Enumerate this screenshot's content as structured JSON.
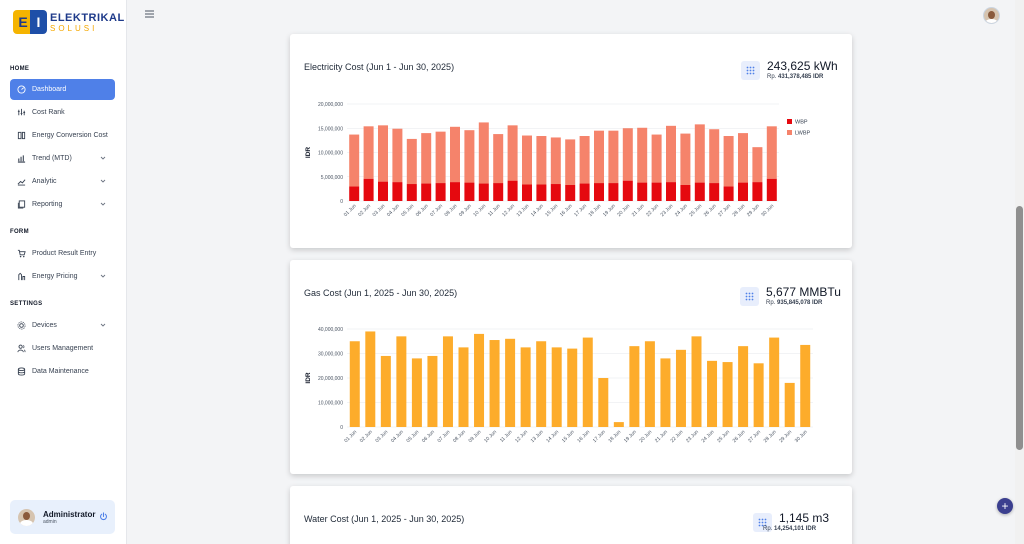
{
  "brand": {
    "name": "ELEKTRIKAL",
    "tagline": "SOLUSI",
    "mark_left": "E",
    "mark_right": "I"
  },
  "topbar": {
    "menu_icon": "hamburger-icon"
  },
  "sidebar": {
    "sections": [
      {
        "title": "HOME",
        "items": [
          {
            "label": "Dashboard",
            "icon": "dashboard-icon",
            "active": true,
            "chevron": false
          },
          {
            "label": "Cost Rank",
            "icon": "rank-icon",
            "active": false,
            "chevron": false
          },
          {
            "label": "Energy Conversion Cost",
            "icon": "conversion-icon",
            "active": false,
            "chevron": false
          },
          {
            "label": "Trend (MTD)",
            "icon": "trend-icon",
            "active": false,
            "chevron": true
          },
          {
            "label": "Analytic",
            "icon": "analytic-icon",
            "active": false,
            "chevron": true
          },
          {
            "label": "Reporting",
            "icon": "reporting-icon",
            "active": false,
            "chevron": true
          }
        ]
      },
      {
        "title": "FORM",
        "items": [
          {
            "label": "Product Result Entry",
            "icon": "cart-icon",
            "active": false,
            "chevron": false
          },
          {
            "label": "Energy Pricing",
            "icon": "pricing-icon",
            "active": false,
            "chevron": true
          }
        ]
      },
      {
        "title": "SETTINGS",
        "items": [
          {
            "label": "Devices",
            "icon": "devices-icon",
            "active": false,
            "chevron": true
          },
          {
            "label": "Users Management",
            "icon": "users-icon",
            "active": false,
            "chevron": false
          },
          {
            "label": "Data Maintenance",
            "icon": "database-icon",
            "active": false,
            "chevron": false
          }
        ]
      }
    ]
  },
  "user": {
    "name": "Administrator",
    "role": "admin"
  },
  "colors": {
    "wbp": "#e5090f",
    "lwbp": "#f5836b",
    "gas": "#fdac2b",
    "active_nav": "#4f80e8"
  },
  "cards": {
    "electricity": {
      "title": "Electricity Cost (Jun 1 - Jun 30, 2025)",
      "stat_value": "243,625 kWh",
      "stat_prefix": "Rp.",
      "stat_cost": "431,378,485 IDR"
    },
    "gas": {
      "title": "Gas Cost (Jun 1, 2025 - Jun 30, 2025)",
      "stat_value": "5,677 MMBTu",
      "stat_prefix": "Rp.",
      "stat_cost": "935,845,078 IDR"
    },
    "water": {
      "title": "Water Cost (Jun 1, 2025 - Jun 30, 2025)",
      "stat_value": "1,145 m3",
      "stat_prefix": "Rp.",
      "stat_cost": "14,254,101 IDR"
    }
  },
  "chart_data": [
    {
      "type": "bar",
      "stacked": true,
      "ylabel": "IDR",
      "ylim": [
        0,
        20000000
      ],
      "yticks": [
        "0",
        "5,000,000",
        "10,000,000",
        "15,000,000",
        "20,000,000"
      ],
      "ytick_values": [
        0,
        5000000,
        10000000,
        15000000,
        20000000
      ],
      "legend_position": "right",
      "categories": [
        "01 Jun",
        "02 Jun",
        "03 Jun",
        "04 Jun",
        "05 Jun",
        "06 Jun",
        "07 Jun",
        "08 Jun",
        "09 Jun",
        "10 Jun",
        "11 Jun",
        "12 Jun",
        "13 Jun",
        "14 Jun",
        "15 Jun",
        "16 Jun",
        "17 Jun",
        "18 Jun",
        "19 Jun",
        "20 Jun",
        "21 Jun",
        "22 Jun",
        "23 Jun",
        "24 Jun",
        "25 Jun",
        "26 Jun",
        "27 Jun",
        "28 Jun",
        "29 Jun",
        "30 Jun"
      ],
      "series": [
        {
          "name": "WBP",
          "color": "#e5090f",
          "values": [
            3000000,
            4600000,
            4000000,
            3900000,
            3500000,
            3600000,
            3700000,
            3900000,
            3800000,
            3600000,
            3700000,
            4200000,
            3400000,
            3400000,
            3500000,
            3300000,
            3600000,
            3700000,
            3700000,
            4200000,
            3800000,
            3800000,
            3900000,
            3300000,
            3800000,
            3700000,
            3000000,
            3800000,
            3900000,
            4600000
          ]
        },
        {
          "name": "LWBP",
          "color": "#f5836b",
          "values": [
            10700000,
            10800000,
            11600000,
            11000000,
            9300000,
            10400000,
            10600000,
            11400000,
            10800000,
            12600000,
            10100000,
            11400000,
            10100000,
            10000000,
            9600000,
            9400000,
            9800000,
            10800000,
            10800000,
            10800000,
            11300000,
            9900000,
            11600000,
            10600000,
            12000000,
            11100000,
            10400000,
            10200000,
            7200000,
            10800000
          ]
        }
      ]
    },
    {
      "type": "bar",
      "ylabel": "IDR",
      "ylim": [
        0,
        40000000
      ],
      "yticks": [
        "0",
        "10,000,000",
        "20,000,000",
        "30,000,000",
        "40,000,000"
      ],
      "ytick_values": [
        0,
        10000000,
        20000000,
        30000000,
        40000000
      ],
      "categories": [
        "01 Jun",
        "02 Jun",
        "03 Jun",
        "04 Jun",
        "05 Jun",
        "06 Jun",
        "07 Jun",
        "08 Jun",
        "09 Jun",
        "10 Jun",
        "11 Jun",
        "12 Jun",
        "13 Jun",
        "14 Jun",
        "15 Jun",
        "16 Jun",
        "17 Jun",
        "18 Jun",
        "19 Jun",
        "20 Jun",
        "21 Jun",
        "22 Jun",
        "23 Jun",
        "24 Jun",
        "25 Jun",
        "26 Jun",
        "27 Jun",
        "28 Jun",
        "29 Jun",
        "30 Jun"
      ],
      "series": [
        {
          "name": "",
          "color": "#fdac2b",
          "values": [
            35000000,
            39000000,
            29000000,
            37000000,
            28000000,
            29000000,
            37000000,
            32500000,
            38000000,
            35500000,
            36000000,
            32500000,
            35000000,
            32500000,
            32000000,
            36500000,
            20000000,
            2000000,
            33000000,
            35000000,
            28000000,
            31500000,
            37000000,
            27000000,
            26500000,
            33000000,
            26000000,
            36500000,
            18000000,
            33500000
          ]
        }
      ]
    }
  ]
}
